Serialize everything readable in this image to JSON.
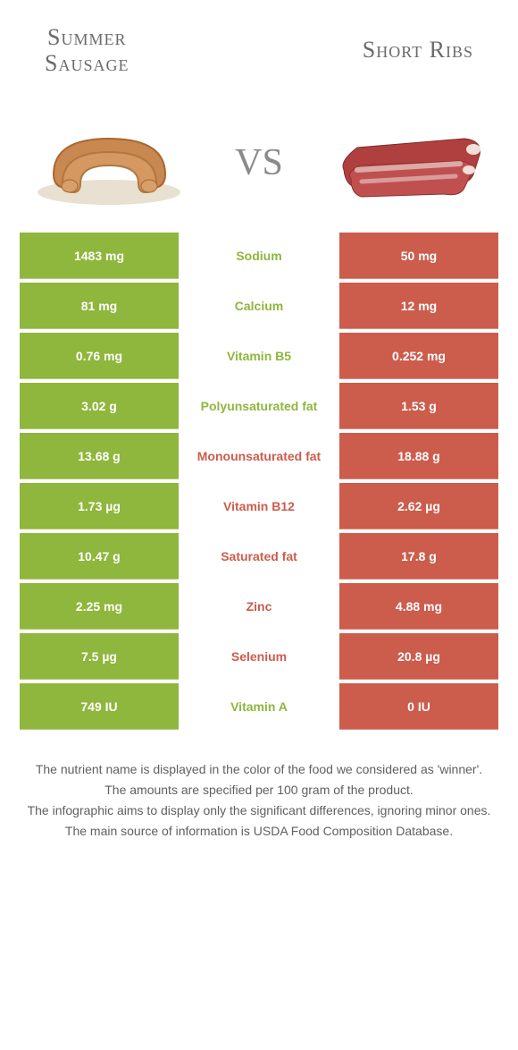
{
  "colors": {
    "left": "#8fb63d",
    "right": "#cc5c4c",
    "center_left": "#8fb63d",
    "center_right": "#cc5c4c",
    "bg": "#ffffff",
    "text_gray": "#6b6b6b"
  },
  "header": {
    "left_title": "Summer\nSausage",
    "right_title": "Short Ribs",
    "vs": "vs"
  },
  "rows": [
    {
      "left": "1483 mg",
      "label": "Sodium",
      "right": "50 mg",
      "winner": "left"
    },
    {
      "left": "81 mg",
      "label": "Calcium",
      "right": "12 mg",
      "winner": "left"
    },
    {
      "left": "0.76 mg",
      "label": "Vitamin B5",
      "right": "0.252 mg",
      "winner": "left"
    },
    {
      "left": "3.02 g",
      "label": "Polyunsaturated fat",
      "right": "1.53 g",
      "winner": "left"
    },
    {
      "left": "13.68 g",
      "label": "Monounsaturated fat",
      "right": "18.88 g",
      "winner": "right"
    },
    {
      "left": "1.73 µg",
      "label": "Vitamin B12",
      "right": "2.62 µg",
      "winner": "right"
    },
    {
      "left": "10.47 g",
      "label": "Saturated fat",
      "right": "17.8 g",
      "winner": "right"
    },
    {
      "left": "2.25 mg",
      "label": "Zinc",
      "right": "4.88 mg",
      "winner": "right"
    },
    {
      "left": "7.5 µg",
      "label": "Selenium",
      "right": "20.8 µg",
      "winner": "right"
    },
    {
      "left": "749 IU",
      "label": "Vitamin A",
      "right": "0 IU",
      "winner": "left"
    }
  ],
  "footer": [
    "The nutrient name is displayed in the color of the food we considered as 'winner'.",
    "The amounts are specified per 100 gram of the product.",
    "The infographic aims to display only the significant differences, ignoring minor ones.",
    "The main source of information is USDA Food Composition Database."
  ]
}
